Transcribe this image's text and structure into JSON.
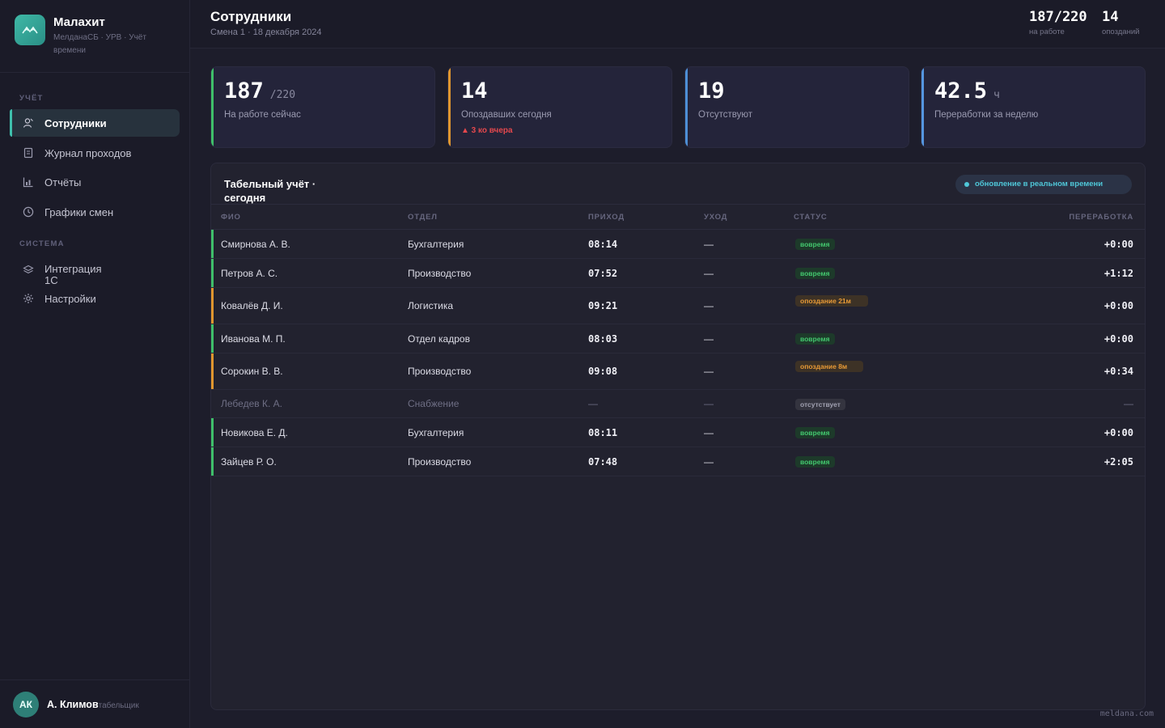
{
  "app": {
    "name": "Малахит",
    "subtitle": "МелданаСБ · УРВ · Учёт времени"
  },
  "nav": {
    "section_accounting": "УЧЁТ",
    "section_system": "СИСТЕМА",
    "items": [
      {
        "label": "Сотрудники",
        "icon": "user-icon"
      },
      {
        "label": "Журнал проходов",
        "icon": "journal-icon"
      },
      {
        "label": "Отчёты",
        "icon": "chart-icon"
      },
      {
        "label": "Графики смен",
        "icon": "clock-icon"
      },
      {
        "label": "Интеграция 1С",
        "icon": "layers-icon"
      },
      {
        "label": "Настройки",
        "icon": "gear-icon"
      }
    ]
  },
  "user": {
    "initials": "АК",
    "name": "А. Климов",
    "role": "табельщик"
  },
  "header": {
    "title": "Сотрудники",
    "subtitle": "Смена 1 · 18 декабря 2024",
    "stat_present_value": "187/220",
    "stat_present_label": "на работе",
    "stat_late_value": "14",
    "stat_late_label": "опозданий"
  },
  "kpis": [
    {
      "value": "187",
      "suffix": "/220",
      "label": "На работе сейчас",
      "accent": "#3fbf6a"
    },
    {
      "value": "14",
      "suffix": "",
      "label": "Опоздавших сегодня",
      "delta": "▲ 3 ко вчера",
      "accent": "#e0962f"
    },
    {
      "value": "19",
      "suffix": "",
      "label": "Отсутствуют",
      "accent": "#4d8fd6"
    },
    {
      "value": "42.5",
      "suffix": "ч",
      "label": "Переработки за неделю",
      "accent": "#5596e0"
    }
  ],
  "table": {
    "title": "Табельный учёт · сегодня",
    "live_label": "обновление в реальном времени",
    "columns": [
      "ФИО",
      "ОТДЕЛ",
      "ПРИХОД",
      "УХОД",
      "СТАТУС",
      "ПЕРЕРАБОТКА"
    ],
    "rows": [
      {
        "name": "Смирнова А. В.",
        "dept": "Бухгалтерия",
        "in": "08:14",
        "out": "—",
        "status": "вовремя",
        "status_kind": "ok",
        "overtime": "+0:00"
      },
      {
        "name": "Петров А. С.",
        "dept": "Производство",
        "in": "07:52",
        "out": "—",
        "status": "вовремя",
        "status_kind": "ok",
        "overtime": "+1:12"
      },
      {
        "name": "Ковалёв Д. И.",
        "dept": "Логистика",
        "in": "09:21",
        "out": "—",
        "status": "опоздание 21м",
        "status_kind": "late",
        "overtime": "+0:00"
      },
      {
        "name": "Иванова М. П.",
        "dept": "Отдел кадров",
        "in": "08:03",
        "out": "—",
        "status": "вовремя",
        "status_kind": "ok",
        "overtime": "+0:00"
      },
      {
        "name": "Сорокин В. В.",
        "dept": "Производство",
        "in": "09:08",
        "out": "—",
        "status": "опоздание 8м",
        "status_kind": "late",
        "overtime": "+0:34"
      },
      {
        "name": "Лебедев К. А.",
        "dept": "Снабжение",
        "in": "—",
        "out": "—",
        "status": "отсутствует",
        "status_kind": "absent",
        "overtime": "—"
      },
      {
        "name": "Новикова Е. Д.",
        "dept": "Бухгалтерия",
        "in": "08:11",
        "out": "—",
        "status": "вовремя",
        "status_kind": "ok",
        "overtime": "+0:00"
      },
      {
        "name": "Зайцев Р. О.",
        "dept": "Производство",
        "in": "07:48",
        "out": "—",
        "status": "вовремя",
        "status_kind": "ok",
        "overtime": "+2:05"
      }
    ]
  },
  "colors": {
    "accent": "#3fc0ad",
    "ok": "#43c76e",
    "late": "#e89a36",
    "absent": "#a0a0b0",
    "danger": "#e5484d"
  },
  "footer": {
    "watermark": "meldana.com"
  }
}
